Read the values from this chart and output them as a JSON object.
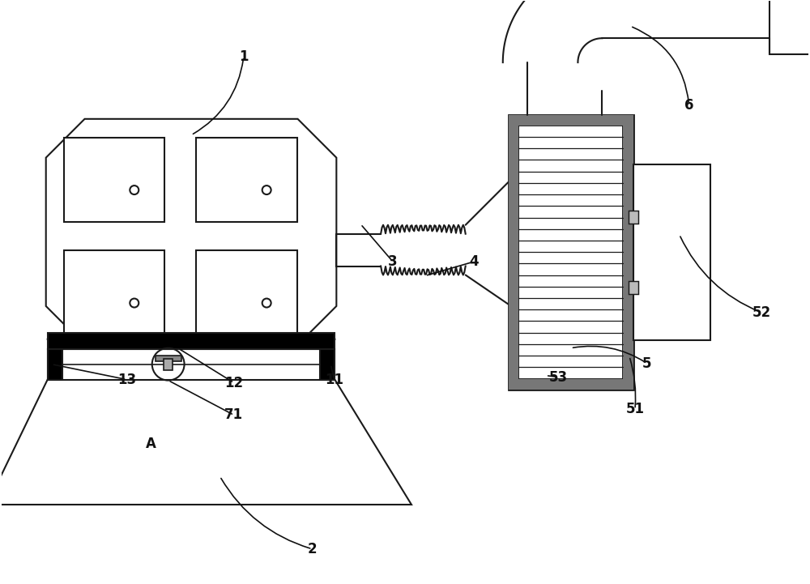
{
  "bg_color": "#ffffff",
  "line_color": "#1a1a1a",
  "dark_color": "#111111",
  "fig_width": 10.0,
  "fig_height": 7.21
}
